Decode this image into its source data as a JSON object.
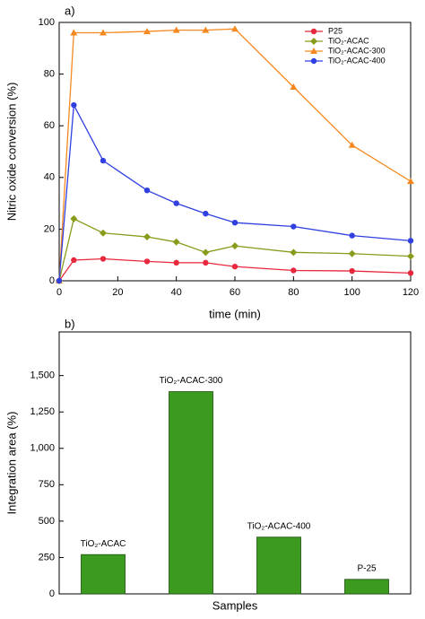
{
  "chart_data": [
    {
      "type": "line",
      "annotation": "a)",
      "xlabel": "time (min)",
      "ylabel": "Nitric oxide conversion (%)",
      "x": [
        0,
        5,
        15,
        30,
        40,
        50,
        60,
        80,
        100,
        120
      ],
      "series": [
        {
          "name": "P25",
          "color": "#e8283c",
          "marker": "circle",
          "values": [
            0,
            8,
            8.5,
            7.5,
            7,
            7,
            5.5,
            4,
            3.8,
            3
          ]
        },
        {
          "name": "TiO₂-ACAC",
          "color": "#8a9a1a",
          "marker": "diamond",
          "values": [
            0,
            24,
            18.5,
            17,
            15,
            11,
            13.5,
            11,
            10.5,
            9.5
          ]
        },
        {
          "name": "TiO₂-ACAC-300",
          "color": "#f5891f",
          "marker": "triangle",
          "values": [
            0,
            96,
            96,
            96.5,
            97,
            97,
            97.5,
            75,
            52.5,
            38.5
          ]
        },
        {
          "name": "TiO₂-ACAC-400",
          "color": "#2f3fe0",
          "marker": "circle",
          "values": [
            0,
            68,
            46.5,
            35,
            30,
            26,
            22.5,
            21,
            17.5,
            15.5
          ]
        }
      ],
      "xlim": [
        0,
        120
      ],
      "xticks": [
        0,
        20,
        40,
        60,
        80,
        100,
        120
      ],
      "ylim": [
        0,
        100
      ],
      "yticks": [
        0,
        20,
        40,
        60,
        80,
        100
      ],
      "legend": "upper right"
    },
    {
      "type": "bar",
      "annotation": "b)",
      "xlabel": "Samples",
      "ylabel": "Integration area (%)",
      "categories": [
        "TiO₂-ACAC",
        "TiO₂-ACAC-300",
        "TiO₂-ACAC-400",
        "P-25"
      ],
      "values": [
        270,
        1390,
        390,
        100
      ],
      "color": "#3c9a1e",
      "ylim": [
        0,
        1800
      ],
      "yticks": [
        0,
        250,
        500,
        {
          "value": 750,
          "label": "750"
        },
        {
          "value": 1000,
          "label": "1,000"
        },
        {
          "value": 1250,
          "label": "1,250"
        },
        {
          "value": 1500,
          "label": "1,500"
        }
      ]
    }
  ]
}
